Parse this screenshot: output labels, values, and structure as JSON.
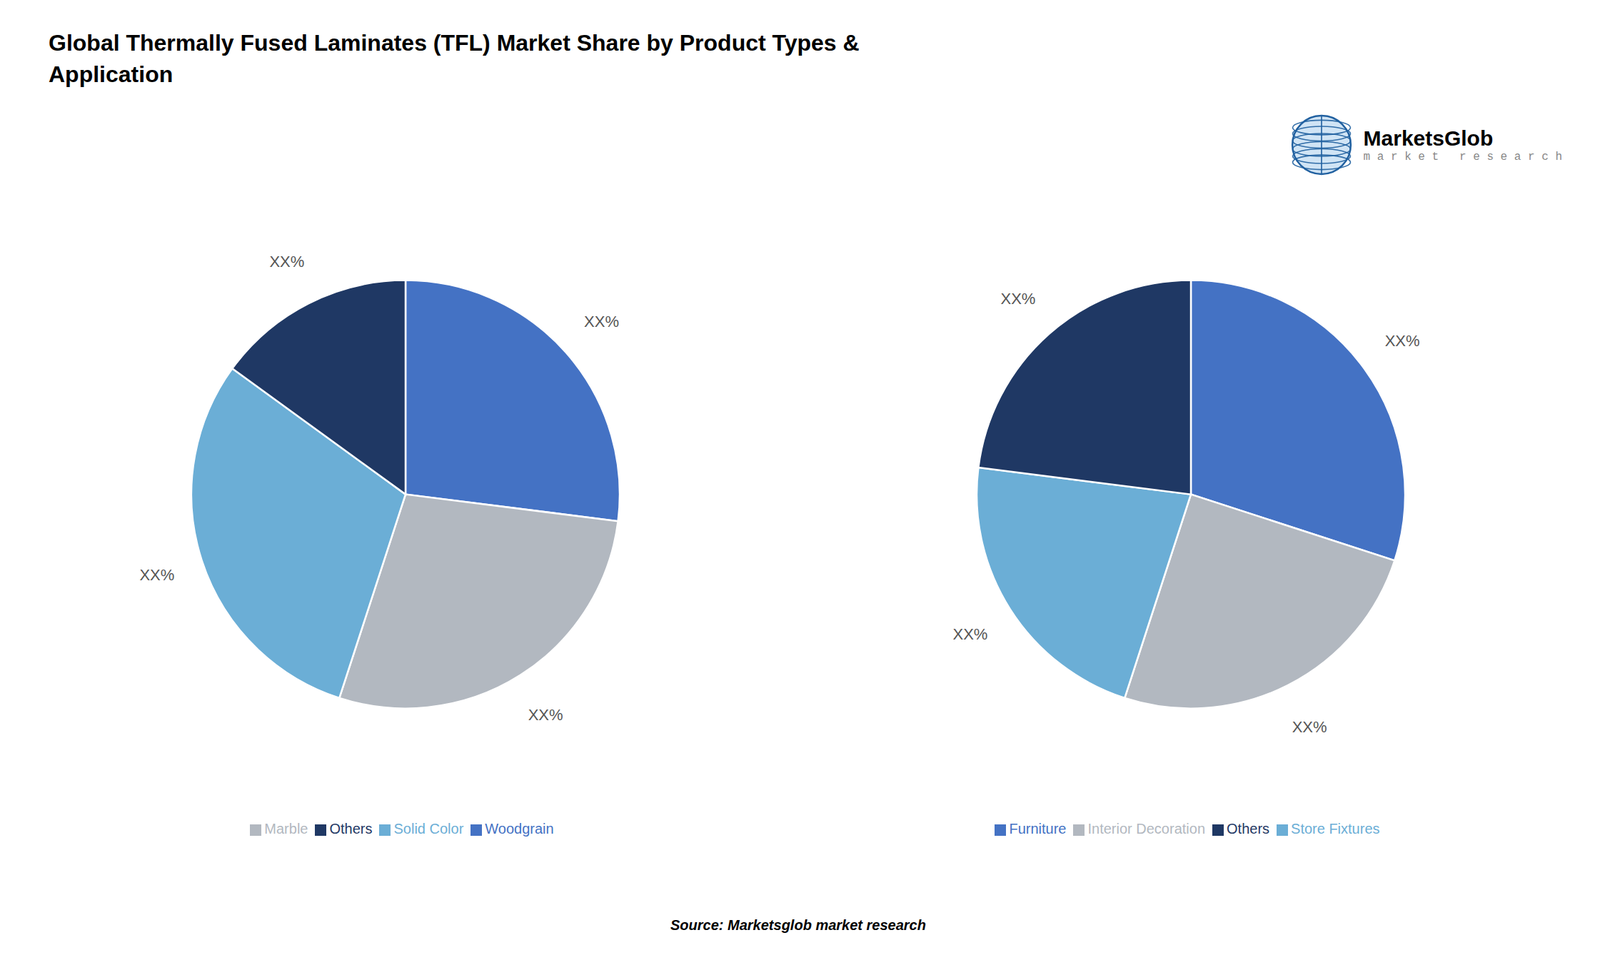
{
  "title": "Global Thermally Fused Laminates (TFL) Market Share by Product Types &\nApplication",
  "annotations": [
    "Source: Marketsglob market research",
    "MarketsGlob",
    "m a r k e t   r e s e a r c h"
  ],
  "chart_data": [
    {
      "type": "pie",
      "categories": [
        "Woodgrain",
        "Marble",
        "Solid Color",
        "Others"
      ],
      "values": [
        27,
        28,
        30,
        15
      ],
      "value_labels": [
        "XX%",
        "XX%",
        "XX%",
        "XX%"
      ],
      "colors": [
        "#4472C4",
        "#B2B8C0",
        "#6BAED6",
        "#1F3864"
      ],
      "legend": "bottom"
    },
    {
      "type": "pie",
      "categories": [
        "Furniture",
        "Interior Decoration",
        "Store Fixtures",
        "Others"
      ],
      "values": [
        30,
        25,
        22,
        23
      ],
      "value_labels": [
        "XX%",
        "XX%",
        "XX%",
        "XX%"
      ],
      "colors": [
        "#4472C4",
        "#B2B8C0",
        "#6BAED6",
        "#1F3864"
      ],
      "legend": "bottom"
    }
  ]
}
